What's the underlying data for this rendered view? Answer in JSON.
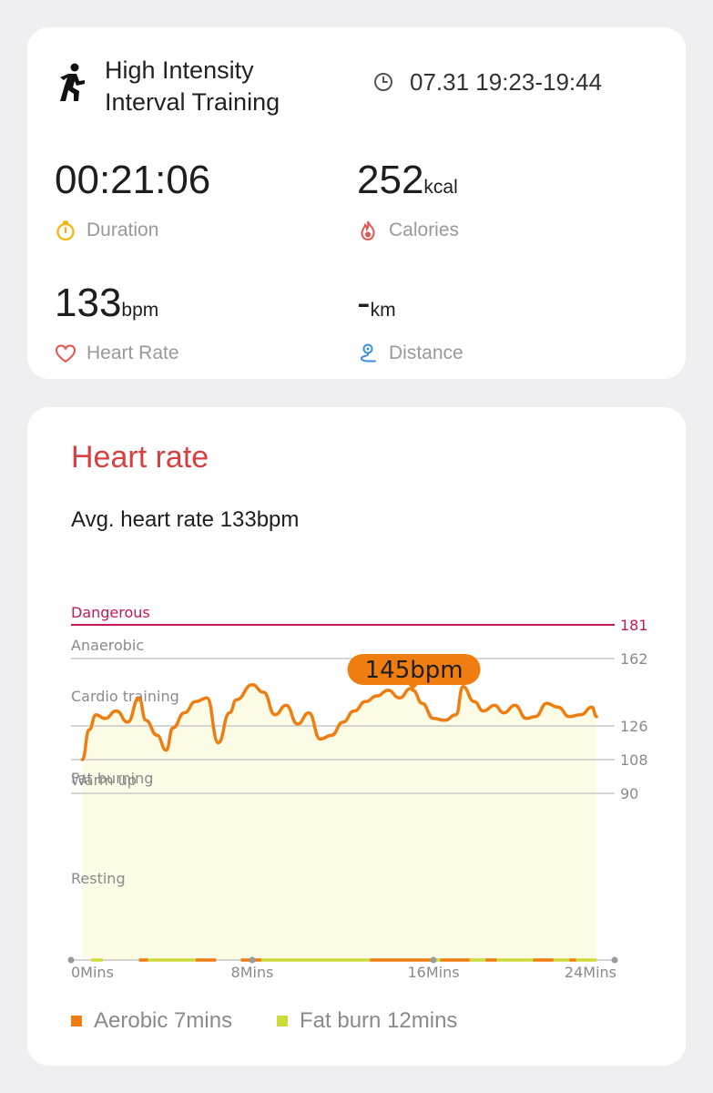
{
  "workout": {
    "title_line1": "High Intensity",
    "title_line2": "Interval Training",
    "time_range": "07.31 19:23-19:44"
  },
  "stats": {
    "duration": {
      "value": "00:21:06",
      "unit": "",
      "label": "Duration"
    },
    "calories": {
      "value": "252",
      "unit": "kcal",
      "label": "Calories"
    },
    "heart_rate": {
      "value": "133",
      "unit": "bpm",
      "label": "Heart Rate"
    },
    "distance": {
      "value": "-",
      "unit": "km",
      "label": "Distance"
    }
  },
  "heart_rate_card": {
    "title": "Heart rate",
    "avg_text": "Avg. heart rate 133bpm",
    "tooltip": "145bpm"
  },
  "colors": {
    "accent_red": "#d93f3f",
    "danger": "#c2185b",
    "line": "#f07d0f",
    "aerobic": "#f07d0f",
    "fat_burn": "#cddc39",
    "area_fill": "#fbfbe6"
  },
  "icons": {
    "activity": "running-person-icon",
    "clock": "clock-icon",
    "duration": "stopwatch-icon",
    "calories": "flame-icon",
    "heart_rate": "heart-icon",
    "distance": "route-pin-icon"
  },
  "chart_data": {
    "type": "line",
    "x_unit": "Mins",
    "xlim": [
      0,
      24
    ],
    "x_ticks": [
      "0Mins",
      "8Mins",
      "16Mins",
      "24Mins"
    ],
    "ylim": [
      0,
      190
    ],
    "zones": [
      {
        "name": "Dangerous",
        "threshold": 181
      },
      {
        "name": "Anaerobic",
        "threshold": 162
      },
      {
        "name": "Cardio training",
        "threshold": 126
      },
      {
        "name": "Fat burning",
        "threshold": 108
      },
      {
        "name": "Warm up",
        "threshold": 90
      },
      {
        "name": "Resting"
      }
    ],
    "threshold_labels": [
      "181",
      "162",
      "126",
      "108",
      "90"
    ],
    "highlight": {
      "x": 15.1,
      "y": 145,
      "label": "145bpm"
    },
    "x": [
      0.5,
      0.8,
      1.1,
      1.5,
      2.0,
      2.5,
      3.0,
      3.3,
      3.8,
      4.2,
      4.5,
      5.0,
      5.5,
      6.0,
      6.5,
      7.0,
      7.3,
      8.0,
      8.5,
      9.0,
      9.5,
      10.0,
      10.5,
      11.0,
      11.5,
      12.0,
      12.5,
      13.0,
      13.5,
      14.0,
      14.5,
      15.0,
      15.1,
      15.5,
      16.0,
      16.5,
      17.0,
      17.3,
      17.8,
      18.2,
      18.7,
      19.1,
      19.6,
      20.1,
      20.5,
      21.0,
      21.5,
      22.0,
      22.5,
      23.0,
      23.2
    ],
    "y": [
      108,
      124,
      132,
      130,
      134,
      128,
      141,
      129,
      121,
      113,
      125,
      133,
      139,
      141,
      117,
      133,
      140,
      148,
      144,
      132,
      137,
      127,
      133,
      119,
      121,
      128,
      134,
      139,
      142,
      145,
      141,
      146,
      145,
      138,
      130,
      129,
      132,
      147,
      139,
      134,
      137,
      133,
      137,
      130,
      131,
      138,
      136,
      131,
      132,
      136,
      131
    ],
    "legend": [
      {
        "name": "Aerobic 7mins",
        "color": "#f07d0f"
      },
      {
        "name": "Fat burn 12mins",
        "color": "#cddc39"
      }
    ],
    "zone_bar": [
      {
        "from": 0.9,
        "to": 1.4,
        "zone": "fat_burn"
      },
      {
        "from": 3.0,
        "to": 3.4,
        "zone": "aerobic"
      },
      {
        "from": 3.4,
        "to": 5.5,
        "zone": "fat_burn"
      },
      {
        "from": 5.5,
        "to": 6.4,
        "zone": "aerobic"
      },
      {
        "from": 7.5,
        "to": 8.4,
        "zone": "aerobic"
      },
      {
        "from": 8.4,
        "to": 13.2,
        "zone": "fat_burn"
      },
      {
        "from": 13.2,
        "to": 16.0,
        "zone": "aerobic"
      },
      {
        "from": 16.0,
        "to": 16.3,
        "zone": "fat_burn"
      },
      {
        "from": 16.3,
        "to": 17.6,
        "zone": "aerobic"
      },
      {
        "from": 17.6,
        "to": 18.3,
        "zone": "fat_burn"
      },
      {
        "from": 18.3,
        "to": 18.8,
        "zone": "aerobic"
      },
      {
        "from": 18.8,
        "to": 20.4,
        "zone": "fat_burn"
      },
      {
        "from": 20.4,
        "to": 21.3,
        "zone": "aerobic"
      },
      {
        "from": 21.3,
        "to": 22.0,
        "zone": "fat_burn"
      },
      {
        "from": 22.0,
        "to": 22.3,
        "zone": "aerobic"
      },
      {
        "from": 22.3,
        "to": 23.2,
        "zone": "fat_burn"
      }
    ]
  }
}
